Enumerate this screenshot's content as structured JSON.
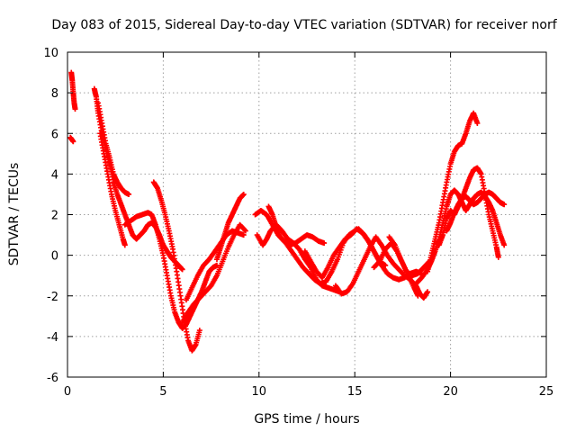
{
  "chart_data": {
    "type": "scatter",
    "title": "Day 083 of 2015, Sidereal Day-to-day VTEC variation (SDTVAR) for receiver norf",
    "xlabel": "GPS time / hours",
    "ylabel": "SDTVAR / TECUs",
    "xlim": [
      0,
      25
    ],
    "ylim": [
      -6,
      10
    ],
    "xticks": [
      "0",
      "5",
      "10",
      "15",
      "20",
      "25"
    ],
    "yticks": [
      "-6",
      "-4",
      "-2",
      "0",
      "2",
      "4",
      "6",
      "8",
      "10"
    ],
    "grid": true,
    "marker": "plus",
    "color": "#ff0000",
    "tracks": [
      [
        [
          0.2,
          9.0
        ],
        [
          0.25,
          8.6
        ],
        [
          0.3,
          8.0
        ],
        [
          0.35,
          7.5
        ],
        [
          0.4,
          7.2
        ]
      ],
      [
        [
          0.15,
          5.8
        ],
        [
          0.3,
          5.6
        ]
      ],
      [
        [
          1.4,
          8.2
        ],
        [
          1.5,
          7.8
        ],
        [
          1.6,
          7.0
        ],
        [
          1.8,
          6.0
        ],
        [
          2.0,
          5.2
        ],
        [
          2.2,
          4.5
        ],
        [
          2.4,
          3.6
        ],
        [
          2.6,
          3.0
        ],
        [
          2.8,
          2.5
        ],
        [
          3.0,
          2.0
        ],
        [
          3.2,
          1.5
        ],
        [
          3.4,
          1.0
        ],
        [
          3.6,
          0.8
        ],
        [
          3.8,
          1.0
        ],
        [
          4.0,
          1.2
        ],
        [
          4.2,
          1.5
        ],
        [
          4.4,
          1.6
        ],
        [
          4.6,
          1.4
        ],
        [
          4.8,
          1.0
        ],
        [
          5.0,
          0.5
        ],
        [
          5.2,
          0.2
        ],
        [
          5.4,
          -0.1
        ],
        [
          5.6,
          -0.3
        ],
        [
          5.8,
          -0.5
        ],
        [
          6.0,
          -0.7
        ]
      ],
      [
        [
          1.6,
          7.5
        ],
        [
          1.8,
          6.5
        ],
        [
          2.0,
          5.5
        ],
        [
          2.2,
          4.8
        ],
        [
          2.4,
          4.0
        ],
        [
          2.6,
          3.6
        ],
        [
          2.8,
          3.3
        ],
        [
          3.0,
          3.1
        ],
        [
          3.2,
          3.0
        ]
      ],
      [
        [
          1.7,
          6.0
        ],
        [
          1.9,
          5.0
        ],
        [
          2.1,
          4.0
        ],
        [
          2.3,
          3.0
        ],
        [
          2.5,
          2.2
        ],
        [
          2.7,
          1.5
        ],
        [
          2.9,
          0.8
        ],
        [
          3.0,
          0.5
        ]
      ],
      [
        [
          3.0,
          1.5
        ],
        [
          3.3,
          1.7
        ],
        [
          3.6,
          1.9
        ],
        [
          3.9,
          2.0
        ],
        [
          4.2,
          2.1
        ],
        [
          4.4,
          2.0
        ],
        [
          4.6,
          1.5
        ],
        [
          4.8,
          0.8
        ],
        [
          5.0,
          0.0
        ],
        [
          5.2,
          -1.0
        ],
        [
          5.4,
          -2.0
        ],
        [
          5.6,
          -2.8
        ],
        [
          5.8,
          -3.3
        ],
        [
          6.0,
          -3.6
        ],
        [
          6.2,
          -3.4
        ],
        [
          6.4,
          -3.0
        ],
        [
          6.6,
          -2.6
        ],
        [
          6.8,
          -2.2
        ],
        [
          7.0,
          -1.8
        ],
        [
          7.2,
          -1.3
        ],
        [
          7.4,
          -0.8
        ],
        [
          7.6,
          -0.6
        ],
        [
          7.8,
          -0.5
        ]
      ],
      [
        [
          4.5,
          3.6
        ],
        [
          4.7,
          3.3
        ],
        [
          4.9,
          2.7
        ],
        [
          5.1,
          2.0
        ],
        [
          5.3,
          1.2
        ],
        [
          5.5,
          0.3
        ],
        [
          5.7,
          -0.8
        ],
        [
          5.9,
          -2.0
        ],
        [
          6.1,
          -3.2
        ],
        [
          6.3,
          -4.2
        ],
        [
          6.5,
          -4.7
        ],
        [
          6.7,
          -4.4
        ],
        [
          6.9,
          -3.7
        ]
      ],
      [
        [
          6.0,
          -3.3
        ],
        [
          6.3,
          -2.8
        ],
        [
          6.6,
          -2.4
        ],
        [
          6.9,
          -2.1
        ],
        [
          7.2,
          -1.8
        ],
        [
          7.5,
          -1.5
        ],
        [
          7.8,
          -1.0
        ],
        [
          8.1,
          -0.3
        ],
        [
          8.4,
          0.4
        ],
        [
          8.7,
          1.0
        ],
        [
          9.0,
          1.5
        ],
        [
          9.3,
          1.2
        ]
      ],
      [
        [
          6.2,
          -2.2
        ],
        [
          6.5,
          -1.6
        ],
        [
          6.8,
          -1.0
        ],
        [
          7.1,
          -0.5
        ],
        [
          7.4,
          -0.2
        ],
        [
          7.7,
          0.2
        ],
        [
          8.0,
          0.6
        ],
        [
          8.3,
          1.0
        ],
        [
          8.6,
          1.2
        ],
        [
          8.9,
          1.1
        ],
        [
          9.2,
          1.0
        ]
      ],
      [
        [
          7.8,
          -0.2
        ],
        [
          8.0,
          0.4
        ],
        [
          8.2,
          1.0
        ],
        [
          8.4,
          1.6
        ],
        [
          8.6,
          2.0
        ],
        [
          8.8,
          2.4
        ],
        [
          9.0,
          2.8
        ],
        [
          9.2,
          3.0
        ]
      ],
      [
        [
          9.8,
          2.0
        ],
        [
          10.1,
          2.2
        ],
        [
          10.4,
          2.0
        ],
        [
          10.7,
          1.5
        ],
        [
          11.0,
          1.0
        ],
        [
          11.3,
          0.7
        ],
        [
          11.6,
          0.5
        ],
        [
          11.9,
          0.6
        ],
        [
          12.2,
          0.8
        ],
        [
          12.5,
          1.0
        ],
        [
          12.8,
          0.9
        ],
        [
          13.1,
          0.7
        ],
        [
          13.4,
          0.6
        ]
      ],
      [
        [
          9.9,
          1.0
        ],
        [
          10.2,
          0.5
        ],
        [
          10.4,
          0.8
        ],
        [
          10.6,
          1.2
        ],
        [
          10.9,
          1.5
        ],
        [
          11.2,
          1.2
        ],
        [
          11.5,
          0.8
        ],
        [
          11.8,
          0.6
        ],
        [
          12.1,
          0.3
        ],
        [
          12.4,
          -0.2
        ],
        [
          12.7,
          -0.6
        ],
        [
          13.0,
          -1.2
        ],
        [
          13.3,
          -1.5
        ],
        [
          13.6,
          -1.6
        ],
        [
          13.9,
          -1.7
        ],
        [
          14.2,
          -1.8
        ]
      ],
      [
        [
          10.5,
          2.4
        ],
        [
          10.7,
          2.0
        ],
        [
          10.9,
          1.4
        ],
        [
          11.1,
          0.9
        ],
        [
          11.4,
          0.6
        ],
        [
          11.7,
          0.2
        ],
        [
          12.0,
          -0.2
        ],
        [
          12.3,
          -0.6
        ],
        [
          12.6,
          -0.9
        ],
        [
          12.9,
          -1.2
        ],
        [
          13.2,
          -1.4
        ],
        [
          13.5,
          -1.3
        ],
        [
          13.8,
          -0.8
        ],
        [
          14.1,
          -0.2
        ],
        [
          14.4,
          0.6
        ],
        [
          14.7,
          1.0
        ],
        [
          15.0,
          1.2
        ]
      ],
      [
        [
          12.4,
          0.2
        ],
        [
          12.7,
          -0.3
        ],
        [
          13.0,
          -0.8
        ],
        [
          13.3,
          -1.1
        ],
        [
          13.6,
          -0.6
        ],
        [
          13.9,
          0.0
        ],
        [
          14.2,
          0.4
        ],
        [
          14.5,
          0.8
        ],
        [
          14.8,
          1.0
        ],
        [
          15.1,
          1.3
        ],
        [
          15.4,
          1.1
        ],
        [
          15.7,
          0.7
        ],
        [
          16.0,
          0.2
        ],
        [
          16.3,
          -0.3
        ],
        [
          16.6,
          -0.5
        ]
      ],
      [
        [
          14.0,
          -1.5
        ],
        [
          14.3,
          -1.9
        ],
        [
          14.6,
          -1.8
        ],
        [
          14.9,
          -1.4
        ],
        [
          15.2,
          -0.8
        ],
        [
          15.5,
          -0.2
        ],
        [
          15.8,
          0.4
        ],
        [
          16.1,
          0.9
        ],
        [
          16.4,
          0.5
        ],
        [
          16.7,
          0.0
        ],
        [
          17.0,
          -0.4
        ],
        [
          17.3,
          -0.7
        ],
        [
          17.6,
          -1.0
        ],
        [
          17.9,
          -1.2
        ],
        [
          18.2,
          -1.5
        ],
        [
          18.4,
          -1.9
        ],
        [
          18.6,
          -2.1
        ],
        [
          18.8,
          -1.8
        ]
      ],
      [
        [
          15.2,
          1.3
        ],
        [
          15.5,
          1.0
        ],
        [
          15.8,
          0.6
        ],
        [
          16.1,
          0.0
        ],
        [
          16.4,
          -0.5
        ],
        [
          16.7,
          -0.9
        ],
        [
          17.0,
          -1.1
        ],
        [
          17.3,
          -1.2
        ],
        [
          17.6,
          -1.1
        ],
        [
          17.9,
          -0.9
        ],
        [
          18.2,
          -0.8
        ],
        [
          18.5,
          -0.9
        ]
      ],
      [
        [
          16.0,
          -0.6
        ],
        [
          16.3,
          -0.3
        ],
        [
          16.6,
          0.3
        ],
        [
          16.9,
          0.6
        ],
        [
          17.2,
          0.2
        ],
        [
          17.5,
          -0.4
        ],
        [
          17.8,
          -1.0
        ],
        [
          18.1,
          -1.6
        ],
        [
          18.3,
          -2.0
        ]
      ],
      [
        [
          16.8,
          0.9
        ],
        [
          17.1,
          0.5
        ],
        [
          17.4,
          -0.2
        ],
        [
          17.7,
          -0.8
        ],
        [
          18.0,
          -1.0
        ],
        [
          18.3,
          -0.9
        ],
        [
          18.6,
          -0.6
        ],
        [
          18.9,
          -0.3
        ]
      ],
      [
        [
          18.2,
          -1.4
        ],
        [
          18.5,
          -1.1
        ],
        [
          18.8,
          -0.7
        ],
        [
          19.0,
          -0.3
        ],
        [
          19.2,
          0.2
        ],
        [
          19.4,
          0.8
        ],
        [
          19.6,
          1.6
        ],
        [
          19.8,
          2.4
        ],
        [
          20.0,
          3.0
        ],
        [
          20.2,
          3.2
        ],
        [
          20.4,
          3.0
        ],
        [
          20.6,
          2.6
        ],
        [
          20.8,
          2.2
        ],
        [
          21.0,
          2.5
        ],
        [
          21.2,
          2.8
        ],
        [
          21.4,
          3.0
        ],
        [
          21.6,
          3.1
        ],
        [
          21.8,
          2.9
        ],
        [
          22.0,
          2.6
        ],
        [
          22.2,
          2.2
        ],
        [
          22.4,
          1.6
        ],
        [
          22.6,
          1.0
        ],
        [
          22.8,
          0.5
        ]
      ],
      [
        [
          18.8,
          -0.8
        ],
        [
          19.0,
          0.0
        ],
        [
          19.2,
          0.8
        ],
        [
          19.4,
          1.6
        ],
        [
          19.6,
          2.6
        ],
        [
          19.8,
          3.6
        ],
        [
          20.0,
          4.5
        ],
        [
          20.2,
          5.1
        ],
        [
          20.4,
          5.4
        ],
        [
          20.6,
          5.5
        ],
        [
          20.8,
          6.0
        ],
        [
          21.0,
          6.6
        ],
        [
          21.2,
          7.0
        ],
        [
          21.4,
          6.5
        ]
      ],
      [
        [
          19.4,
          0.5
        ],
        [
          19.6,
          1.0
        ],
        [
          19.8,
          1.8
        ],
        [
          20.0,
          2.2
        ],
        [
          20.2,
          2.0
        ],
        [
          20.4,
          2.4
        ],
        [
          20.6,
          2.8
        ],
        [
          20.8,
          3.3
        ],
        [
          21.0,
          3.8
        ],
        [
          21.2,
          4.2
        ],
        [
          21.4,
          4.3
        ],
        [
          21.6,
          4.0
        ],
        [
          21.8,
          3.0
        ],
        [
          22.0,
          2.0
        ],
        [
          22.2,
          1.2
        ],
        [
          22.4,
          0.4
        ],
        [
          22.5,
          -0.1
        ]
      ],
      [
        [
          19.8,
          1.2
        ],
        [
          20.0,
          1.6
        ],
        [
          20.2,
          2.1
        ],
        [
          20.4,
          2.5
        ],
        [
          20.6,
          2.8
        ],
        [
          20.8,
          2.9
        ],
        [
          21.0,
          2.7
        ],
        [
          21.2,
          2.5
        ],
        [
          21.4,
          2.6
        ],
        [
          21.6,
          2.8
        ],
        [
          21.8,
          3.0
        ],
        [
          22.0,
          3.1
        ],
        [
          22.2,
          3.0
        ],
        [
          22.4,
          2.8
        ],
        [
          22.6,
          2.6
        ],
        [
          22.8,
          2.5
        ]
      ]
    ]
  }
}
